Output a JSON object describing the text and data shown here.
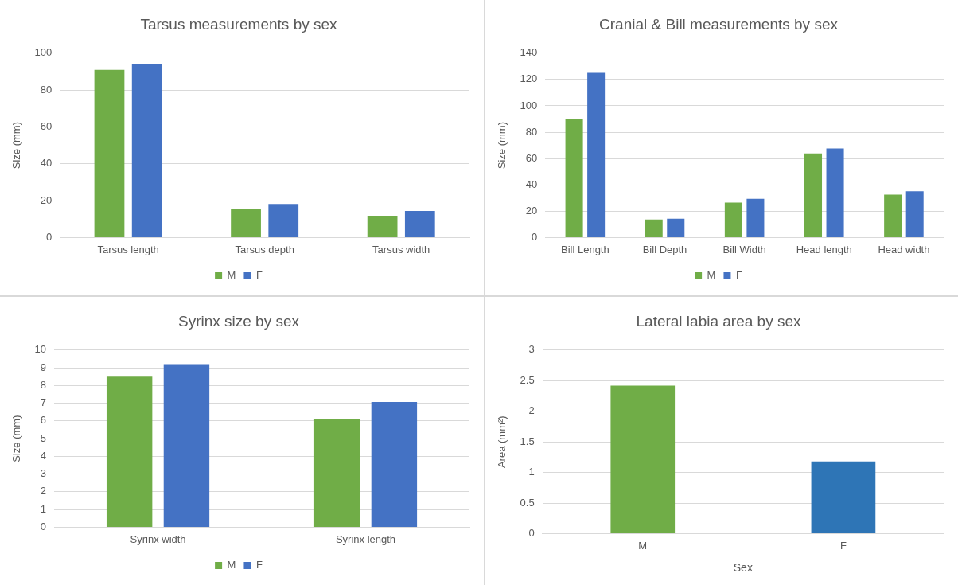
{
  "chart_data": [
    {
      "type": "bar",
      "title": "Tarsus measurements by sex",
      "ylabel": "Size (mm)",
      "categories": [
        "Tarsus length",
        "Tarsus depth",
        "Tarsus width"
      ],
      "series": [
        {
          "name": "M",
          "color": "#70ad47",
          "values": [
            91,
            15.4,
            11.6
          ]
        },
        {
          "name": "F",
          "color": "#4472c4",
          "values": [
            94.1,
            18.2,
            14.4
          ]
        }
      ],
      "ylim": [
        0,
        100
      ],
      "yticks": [
        0,
        20,
        40,
        60,
        80,
        100
      ],
      "grid": "y",
      "legend": "bottom"
    },
    {
      "type": "bar",
      "title": "Cranial & Bill measurements by sex",
      "ylabel": "Size (mm)",
      "categories": [
        "Bill Length",
        "Bill Depth",
        "Bill Width",
        "Head length",
        "Head width"
      ],
      "series": [
        {
          "name": "M",
          "color": "#70ad47",
          "values": [
            89.7,
            13.7,
            26.6,
            63.8,
            32.6
          ]
        },
        {
          "name": "F",
          "color": "#4472c4",
          "values": [
            125,
            14.3,
            29.4,
            67.7,
            35.1
          ]
        }
      ],
      "ylim": [
        0,
        140
      ],
      "yticks": [
        0,
        20,
        40,
        60,
        80,
        100,
        120,
        140
      ],
      "grid": "y",
      "legend": "bottom"
    },
    {
      "type": "bar",
      "title": "Syrinx size by sex",
      "ylabel": "Size (mm)",
      "categories": [
        "Syrinx width",
        "Syrinx length"
      ],
      "series": [
        {
          "name": "M",
          "color": "#70ad47",
          "values": [
            8.5,
            6.1
          ]
        },
        {
          "name": "F",
          "color": "#4472c4",
          "values": [
            9.2,
            7.07
          ]
        }
      ],
      "ylim": [
        0,
        10
      ],
      "yticks": [
        0,
        1,
        2,
        3,
        4,
        5,
        6,
        7,
        8,
        9,
        10
      ],
      "grid": "y",
      "legend": "bottom"
    },
    {
      "type": "bar",
      "title": "Lateral labia area by sex",
      "xlabel": "Sex",
      "ylabel": "Area (mm²)",
      "categories": [
        "M",
        "F"
      ],
      "values": [
        2.42,
        1.18
      ],
      "colors": [
        "#70ad47",
        "#2e75b6"
      ],
      "ylim": [
        0,
        3
      ],
      "yticks": [
        0,
        0.5,
        1,
        1.5,
        2,
        2.5,
        3
      ],
      "grid": "y"
    }
  ]
}
